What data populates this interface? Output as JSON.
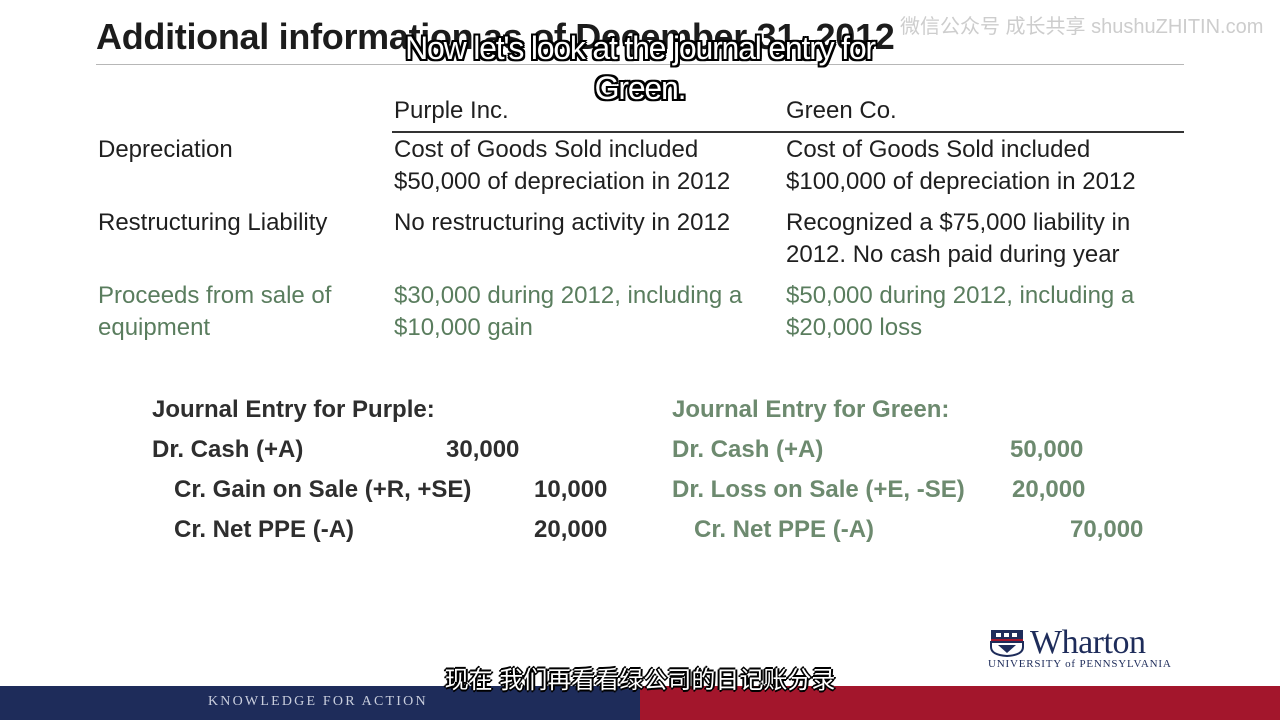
{
  "slide": {
    "title": "Additional information as of December 31, 2012",
    "watermark": "微信公众号 成长共享 shushuZHITIN.com"
  },
  "caption": {
    "line1": "Now let's look at the journal entry for",
    "line2": "Green.",
    "chinese": "现在 我们再看看绿公司的日记账分录"
  },
  "table": {
    "columns": [
      "Purple Inc.",
      "Green Co."
    ],
    "rows": [
      {
        "label": [
          "Depreciation"
        ],
        "purple": [
          "Cost of Goods Sold included",
          "$50,000 of depreciation in 2012"
        ],
        "green": [
          "Cost of Goods Sold included",
          "$100,000 of depreciation in 2012"
        ]
      },
      {
        "label": [
          "Restructuring Liability"
        ],
        "purple": [
          "No restructuring activity in 2012"
        ],
        "green": [
          "Recognized a $75,000 liability in",
          "2012.  No cash paid during year"
        ]
      },
      {
        "label": [
          "Proceeds from sale of",
          "equipment"
        ],
        "purple": [
          "$30,000 during 2012, including a",
          "$10,000 gain"
        ],
        "green": [
          "$50,000 during 2012, including a",
          "$20,000 loss"
        ]
      }
    ]
  },
  "journal": {
    "purple": {
      "heading": "Journal Entry for Purple:",
      "lines": [
        {
          "account": "Dr. Cash (+A)",
          "amount": "30,000"
        },
        {
          "account": "Cr. Gain on Sale (+R, +SE)",
          "amount": "10,000"
        },
        {
          "account": "Cr. Net PPE (-A)",
          "amount": "20,000"
        }
      ]
    },
    "green": {
      "heading": "Journal Entry for Green:",
      "lines": [
        {
          "account": "Dr. Cash (+A)",
          "amount": "50,000"
        },
        {
          "account": "Dr. Loss on Sale (+E, -SE)",
          "amount": "20,000"
        },
        {
          "account": "Cr. Net PPE (-A)",
          "amount": "70,000"
        }
      ]
    }
  },
  "branding": {
    "logo": "Wharton",
    "logo_sub": "UNIVERSITY of PENNSYLVANIA",
    "footer": "KNOWLEDGE FOR ACTION",
    "navy": "#1e2c5a",
    "red": "#a3162c"
  }
}
